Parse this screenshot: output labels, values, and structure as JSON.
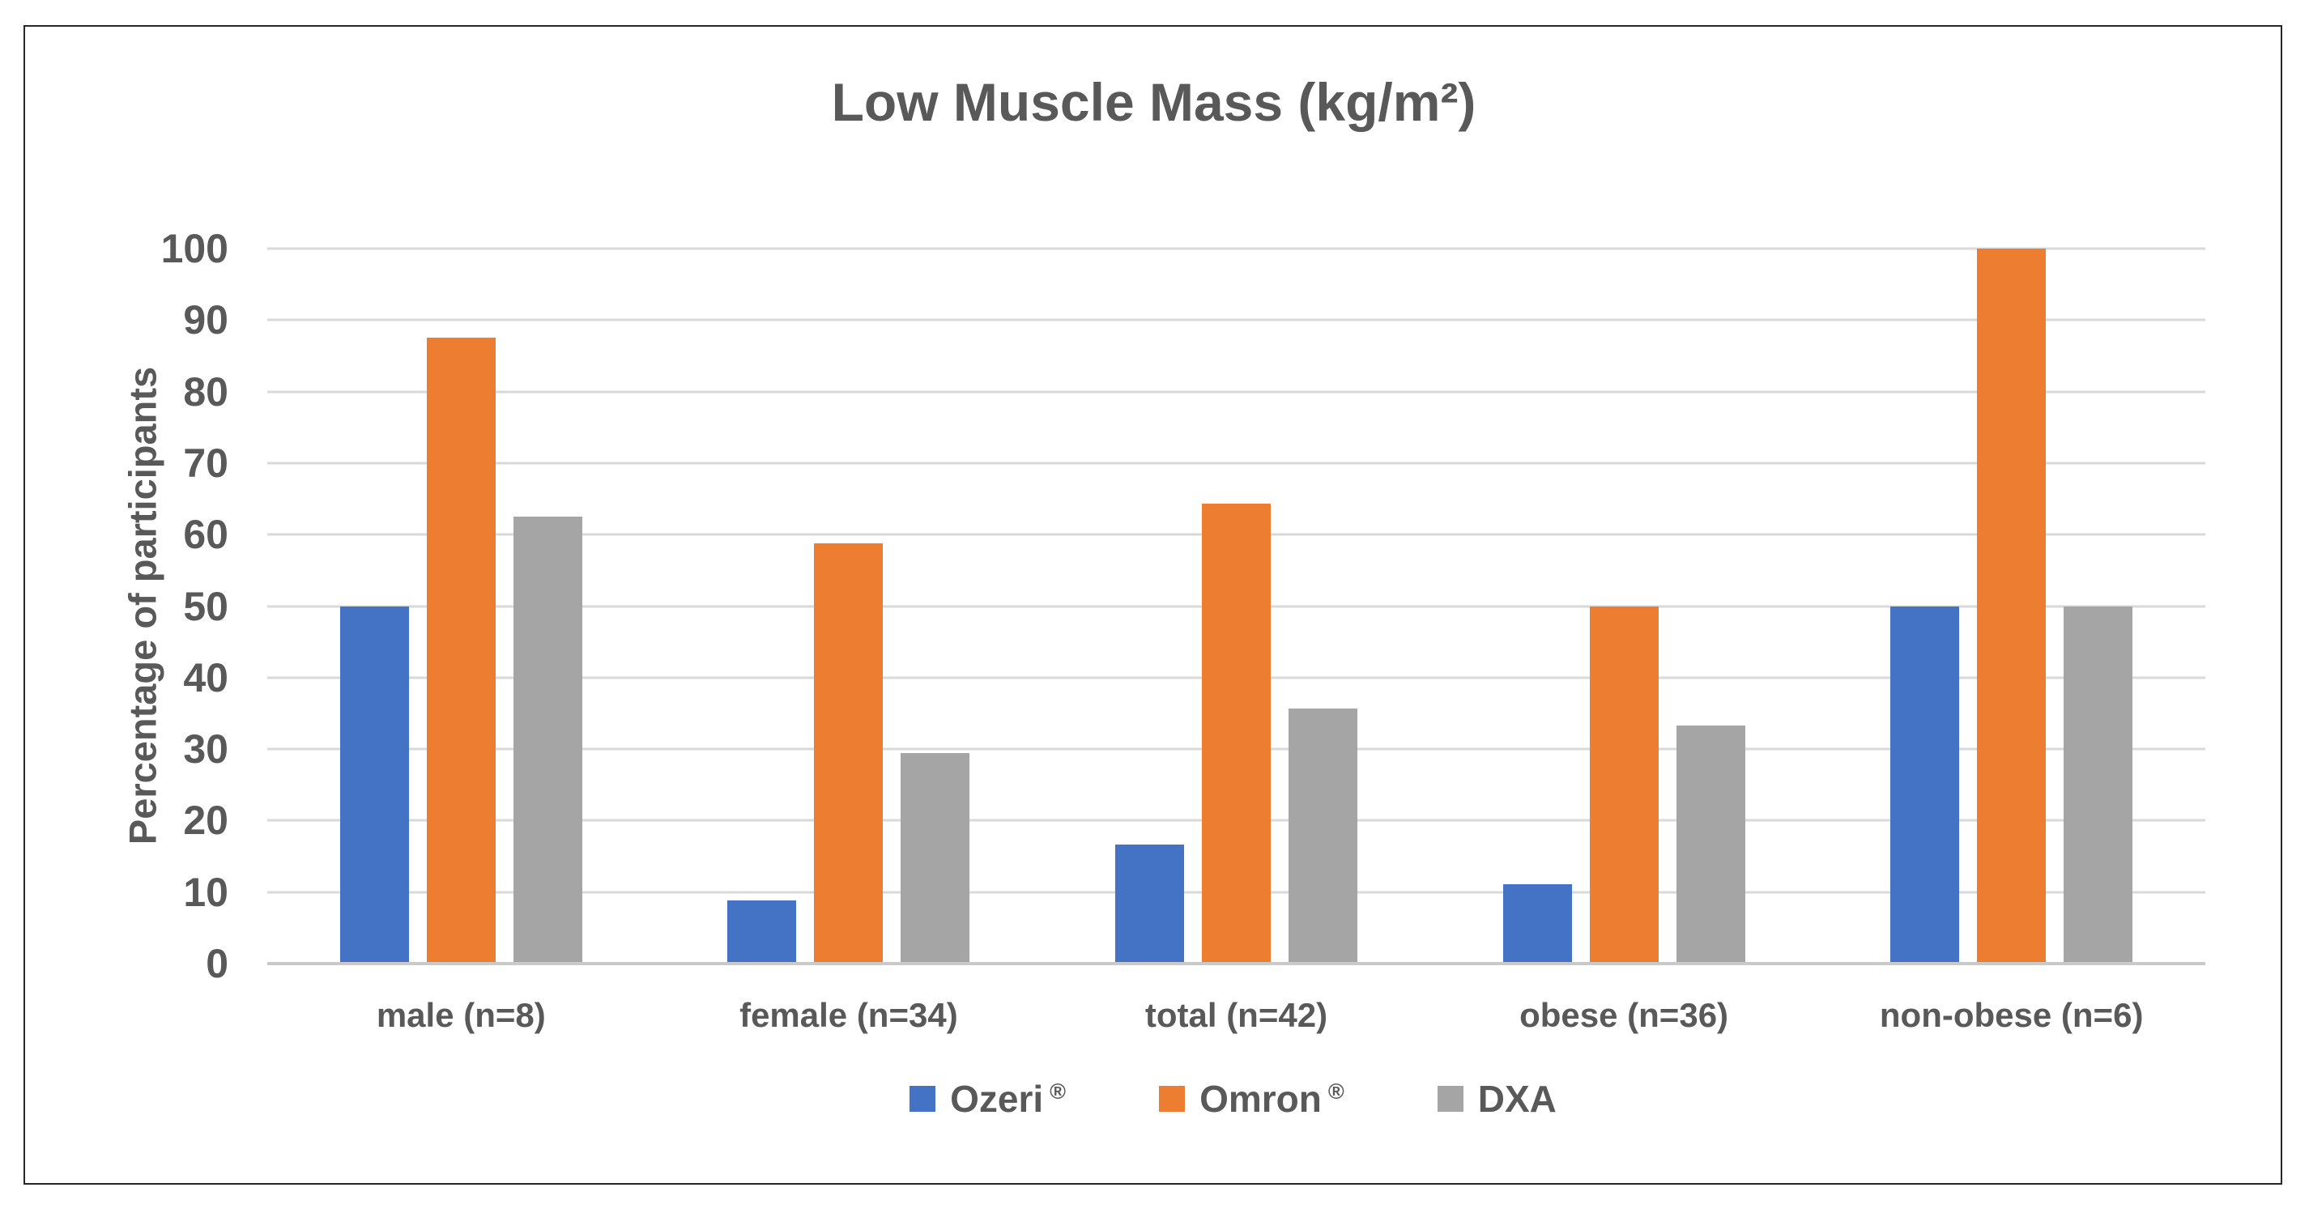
{
  "chart": {
    "title": "Low Muscle Mass (kg/m²)"
  },
  "y_axis": {
    "label": "Percentage of participants",
    "ticks": [
      "100",
      "90",
      "80",
      "70",
      "60",
      "50",
      "40",
      "30",
      "20",
      "10",
      "0"
    ]
  },
  "chart_data": {
    "type": "bar",
    "title": "Low Muscle Mass (kg/m²)",
    "xlabel": "",
    "ylabel": "Percentage of participants",
    "ylim": [
      0,
      100
    ],
    "ytick_step": 10,
    "grid": true,
    "legend_position": "bottom",
    "categories": [
      "male (n=8)",
      "female (n=34)",
      "total (n=42)",
      "obese (n=36)",
      "non-obese (n=6)"
    ],
    "series": [
      {
        "name": "Ozeri",
        "reg_mark": "®",
        "color": "#4472C4",
        "values": [
          50,
          8.8,
          16.7,
          11.1,
          50
        ]
      },
      {
        "name": "Omron",
        "reg_mark": "®",
        "color": "#ED7D31",
        "values": [
          87.5,
          58.8,
          64.3,
          50,
          100
        ]
      },
      {
        "name": "DXA",
        "reg_mark": "",
        "color": "#A5A5A5",
        "values": [
          62.5,
          29.4,
          35.7,
          33.3,
          50
        ]
      }
    ]
  },
  "colors": {
    "text": "#595959",
    "gridline": "#D9D9D9",
    "axis_line": "#C9C9C9",
    "frame_border": "#262626",
    "background": "#FFFFFF"
  }
}
